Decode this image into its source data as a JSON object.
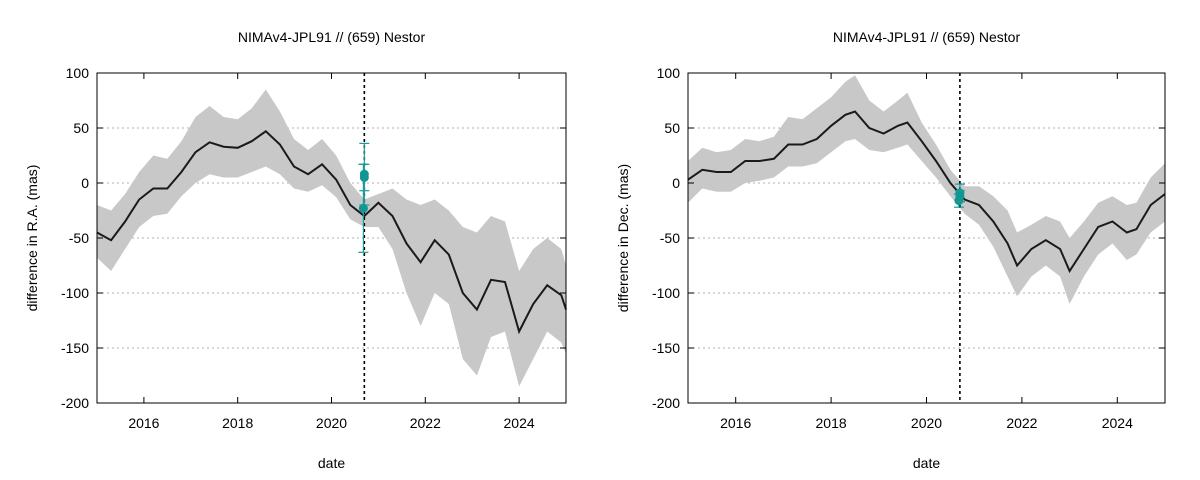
{
  "chart_data": [
    {
      "type": "line",
      "title": "NIMAv4-JPL91 // (659) Nestor",
      "xlabel": "date",
      "ylabel": "difference in R.A. (mas)",
      "xlim": [
        2015.0,
        2025.0
      ],
      "ylim": [
        -200,
        100
      ],
      "xticks": [
        2016,
        2018,
        2020,
        2022,
        2024
      ],
      "yticks": [
        -200,
        -150,
        -100,
        -50,
        0,
        50,
        100
      ],
      "grid": "horizontal dotted",
      "marker_line_x": 2020.7,
      "series": [
        {
          "kind": "line_with_band",
          "x": [
            2015.0,
            2015.3,
            2015.6,
            2015.9,
            2016.2,
            2016.5,
            2016.8,
            2017.1,
            2017.4,
            2017.7,
            2018.0,
            2018.3,
            2018.6,
            2018.9,
            2019.2,
            2019.5,
            2019.8,
            2020.1,
            2020.4,
            2020.7,
            2021.0,
            2021.3,
            2021.6,
            2021.9,
            2022.2,
            2022.5,
            2022.8,
            2023.1,
            2023.4,
            2023.7,
            2024.0,
            2024.3,
            2024.6,
            2024.9,
            2025.0
          ],
          "y": [
            -45,
            -52,
            -35,
            -15,
            -5,
            -5,
            10,
            28,
            37,
            33,
            32,
            38,
            47,
            35,
            15,
            8,
            17,
            3,
            -20,
            -30,
            -18,
            -30,
            -55,
            -72,
            -52,
            -65,
            -100,
            -115,
            -88,
            -90,
            -135,
            -110,
            -93,
            -102,
            -115
          ],
          "band_low": [
            -68,
            -80,
            -60,
            -40,
            -30,
            -28,
            -12,
            0,
            8,
            5,
            5,
            10,
            15,
            8,
            -5,
            -8,
            -2,
            -13,
            -33,
            -40,
            -40,
            -60,
            -100,
            -130,
            -100,
            -110,
            -160,
            -175,
            -140,
            -135,
            -185,
            -160,
            -135,
            -145,
            -155
          ],
          "band_high": [
            -20,
            -25,
            -10,
            10,
            25,
            22,
            38,
            60,
            70,
            60,
            58,
            68,
            85,
            65,
            40,
            30,
            40,
            25,
            0,
            -15,
            -10,
            -5,
            -15,
            -20,
            -15,
            -25,
            -40,
            -45,
            -30,
            -35,
            -80,
            -60,
            -50,
            -60,
            -75
          ]
        },
        {
          "kind": "points_with_errors",
          "x": [
            2020.68,
            2020.7,
            2020.7
          ],
          "y": [
            -23,
            5,
            8
          ],
          "err": [
            40,
            12,
            28
          ],
          "color": "#119691"
        }
      ]
    },
    {
      "type": "line",
      "title": "NIMAv4-JPL91 // (659) Nestor",
      "xlabel": "date",
      "ylabel": "difference in Dec. (mas)",
      "xlim": [
        2015.0,
        2025.0
      ],
      "ylim": [
        -200,
        100
      ],
      "xticks": [
        2016,
        2018,
        2020,
        2022,
        2024
      ],
      "yticks": [
        -200,
        -150,
        -100,
        -50,
        0,
        50,
        100
      ],
      "grid": "horizontal dotted",
      "marker_line_x": 2020.7,
      "series": [
        {
          "kind": "line_with_band",
          "x": [
            2015.0,
            2015.3,
            2015.6,
            2015.9,
            2016.2,
            2016.5,
            2016.8,
            2017.1,
            2017.4,
            2017.7,
            2018.0,
            2018.3,
            2018.5,
            2018.8,
            2019.1,
            2019.4,
            2019.6,
            2019.9,
            2020.2,
            2020.5,
            2020.8,
            2021.1,
            2021.4,
            2021.7,
            2021.9,
            2022.2,
            2022.5,
            2022.8,
            2023.0,
            2023.3,
            2023.6,
            2023.9,
            2024.2,
            2024.4,
            2024.7,
            2025.0
          ],
          "y": [
            3,
            12,
            10,
            10,
            20,
            20,
            22,
            35,
            35,
            40,
            52,
            62,
            65,
            50,
            45,
            52,
            55,
            38,
            20,
            0,
            -15,
            -20,
            -35,
            -55,
            -75,
            -60,
            -52,
            -60,
            -80,
            -60,
            -40,
            -35,
            -45,
            -42,
            -20,
            -10
          ],
          "band_low": [
            -18,
            -5,
            -8,
            -8,
            0,
            2,
            5,
            15,
            15,
            18,
            28,
            38,
            40,
            30,
            28,
            32,
            35,
            20,
            5,
            -12,
            -28,
            -38,
            -58,
            -85,
            -103,
            -85,
            -75,
            -85,
            -110,
            -85,
            -65,
            -55,
            -70,
            -65,
            -45,
            -35
          ],
          "band_high": [
            20,
            32,
            28,
            30,
            40,
            38,
            42,
            60,
            58,
            68,
            78,
            92,
            98,
            75,
            65,
            75,
            82,
            55,
            35,
            12,
            -3,
            -3,
            -12,
            -25,
            -45,
            -38,
            -30,
            -35,
            -50,
            -35,
            -18,
            -12,
            -20,
            -18,
            5,
            18
          ]
        },
        {
          "kind": "points_with_errors",
          "x": [
            2020.68,
            2020.7,
            2020.7
          ],
          "y": [
            -16,
            -9,
            -12
          ],
          "err": [
            6,
            8,
            5
          ],
          "color": "#119691"
        }
      ]
    }
  ]
}
